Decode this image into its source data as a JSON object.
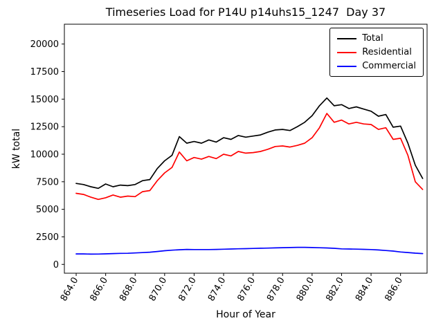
{
  "chart_data": {
    "type": "line",
    "title": "Timeseries Load for P14U p14uhs15_1247  Day 37",
    "xlabel": "Hour of Year",
    "ylabel": "kW total",
    "grid": false,
    "legend_position": "upper right",
    "xlim": [
      863.2,
      887.8
    ],
    "ylim": [
      -800,
      21800
    ],
    "x_ticks": [
      864,
      866,
      868,
      870,
      872,
      874,
      876,
      878,
      880,
      882,
      884,
      886
    ],
    "x_tick_labels": [
      "864.0",
      "866.0",
      "868.0",
      "870.0",
      "872.0",
      "874.0",
      "876.0",
      "878.0",
      "880.0",
      "882.0",
      "884.0",
      "886.0"
    ],
    "y_ticks": [
      0,
      2500,
      5000,
      7500,
      10000,
      12500,
      15000,
      17500,
      20000
    ],
    "y_tick_labels": [
      "0",
      "2500",
      "5000",
      "7500",
      "10000",
      "12500",
      "15000",
      "17500",
      "20000"
    ],
    "x": [
      864.0,
      864.5,
      865.0,
      865.5,
      866.0,
      866.5,
      867.0,
      867.5,
      868.0,
      868.5,
      869.0,
      869.5,
      870.0,
      870.5,
      871.0,
      871.5,
      872.0,
      872.5,
      873.0,
      873.5,
      874.0,
      874.5,
      875.0,
      875.5,
      876.0,
      876.5,
      877.0,
      877.5,
      878.0,
      878.5,
      879.0,
      879.5,
      880.0,
      880.5,
      881.0,
      881.5,
      882.0,
      882.5,
      883.0,
      883.5,
      884.0,
      884.5,
      885.0,
      885.5,
      886.0,
      886.5,
      887.0,
      887.5
    ],
    "series": [
      {
        "name": "Total",
        "color": "#000000",
        "values": [
          7350,
          7250,
          7050,
          6900,
          7300,
          7050,
          7200,
          7150,
          7250,
          7600,
          7700,
          8700,
          9400,
          9900,
          11600,
          11000,
          11150,
          11000,
          11300,
          11100,
          11500,
          11350,
          11700,
          11550,
          11650,
          11750,
          12000,
          12200,
          12250,
          12150,
          12500,
          12900,
          13500,
          14400,
          15100,
          14400,
          14500,
          14150,
          14300,
          14100,
          13900,
          13450,
          13600,
          12450,
          12550,
          11000,
          9000,
          7800
        ]
      },
      {
        "name": "Residential",
        "color": "#ff0000",
        "values": [
          6450,
          6350,
          6100,
          5900,
          6050,
          6300,
          6100,
          6200,
          6150,
          6600,
          6700,
          7600,
          8300,
          8800,
          10200,
          9400,
          9700,
          9550,
          9800,
          9600,
          10000,
          9850,
          10250,
          10100,
          10150,
          10250,
          10450,
          10700,
          10750,
          10650,
          10800,
          11000,
          11500,
          12400,
          13700,
          12900,
          13100,
          12750,
          12900,
          12750,
          12700,
          12250,
          12400,
          11350,
          11450,
          9900,
          7500,
          6800
        ]
      },
      {
        "name": "Commercial",
        "color": "#0000ff",
        "values": [
          950,
          950,
          930,
          940,
          960,
          980,
          1000,
          1010,
          1040,
          1070,
          1110,
          1170,
          1240,
          1290,
          1330,
          1360,
          1350,
          1345,
          1350,
          1360,
          1380,
          1400,
          1415,
          1430,
          1450,
          1465,
          1480,
          1500,
          1515,
          1530,
          1545,
          1550,
          1530,
          1510,
          1490,
          1460,
          1410,
          1400,
          1385,
          1365,
          1345,
          1310,
          1260,
          1210,
          1130,
          1080,
          1020,
          980
        ]
      }
    ]
  }
}
